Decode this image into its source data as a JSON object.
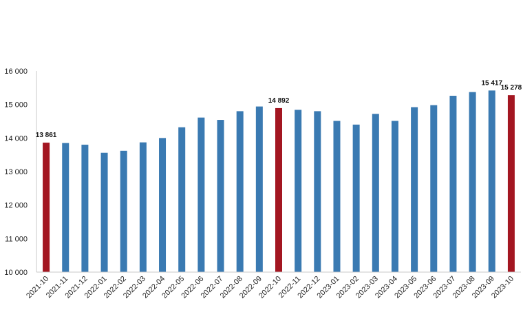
{
  "chart_data": {
    "type": "bar",
    "categories": [
      "2021-10",
      "2021-11",
      "2021-12",
      "2022-01",
      "2022-02",
      "2022-03",
      "2022-04",
      "2022-05",
      "2022-06",
      "2022-07",
      "2022-08",
      "2022-09",
      "2022-10",
      "2022-11",
      "2022-12",
      "2023-01",
      "2023-02",
      "2023-03",
      "2023-04",
      "2023-05",
      "2023-06",
      "2023-07",
      "2023-08",
      "2023-09",
      "2023-10"
    ],
    "values": [
      13861,
      13850,
      13800,
      13560,
      13620,
      13870,
      14000,
      14320,
      14610,
      14540,
      14800,
      14940,
      14892,
      14840,
      14800,
      14510,
      14400,
      14720,
      14510,
      14920,
      14980,
      15260,
      15370,
      15417,
      15278
    ],
    "highlighted": [
      "2021-10",
      "2022-10",
      "2023-10"
    ],
    "data_labels": [
      {
        "category": "2021-10",
        "text": "13 861"
      },
      {
        "category": "2022-10",
        "text": "14 892"
      },
      {
        "category": "2023-09",
        "text": "15 417"
      },
      {
        "category": "2023-10",
        "text": "15 278"
      }
    ],
    "y_ticks": [
      "10 000",
      "11 000",
      "12 000",
      "13 000",
      "14 000",
      "15 000",
      "16 000"
    ],
    "ylim": [
      10000,
      16000
    ],
    "title": "",
    "xlabel": "",
    "ylabel": "",
    "grid": false,
    "colors": {
      "bar": "#3a7ab2",
      "highlight": "#a31621",
      "axis": "#c8c8c8"
    }
  }
}
